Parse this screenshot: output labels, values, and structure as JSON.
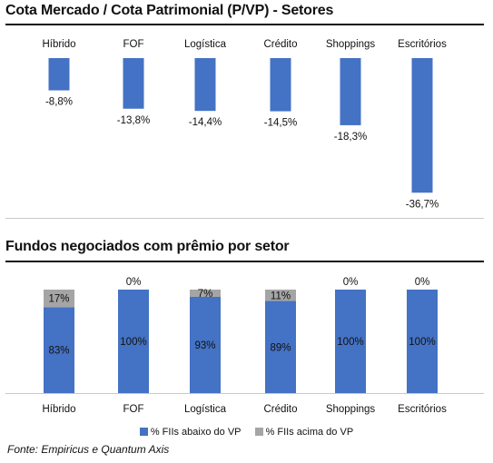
{
  "chart_data": [
    {
      "type": "bar",
      "title": "Cota Mercado / Cota Patrimonial (P/VP) - Setores",
      "categories": [
        "Híbrido",
        "FOF",
        "Logística",
        "Crédito",
        "Shoppings",
        "Escritórios"
      ],
      "values": [
        -8.8,
        -13.8,
        -14.4,
        -14.5,
        -18.3,
        -36.7
      ],
      "labels": [
        "-8,8%",
        "-13,8%",
        "-14,4%",
        "-14,5%",
        "-18,3%",
        "-36,7%"
      ],
      "unit": "%",
      "category_axis_position": "top",
      "color": "#4472C4"
    },
    {
      "type": "bar",
      "stacked": true,
      "title": "Fundos negociados com prêmio por setor",
      "categories": [
        "Híbrido",
        "FOF",
        "Logística",
        "Crédito",
        "Shoppings",
        "Escritórios"
      ],
      "series": [
        {
          "name": "% FIIs abaixo do VP",
          "values": [
            83,
            100,
            93,
            89,
            100,
            100
          ],
          "labels": [
            "83%",
            "100%",
            "93%",
            "89%",
            "100%",
            "100%"
          ],
          "color": "#4472C4"
        },
        {
          "name": "% FIIs acima do VP",
          "values": [
            17,
            0,
            7,
            11,
            0,
            0
          ],
          "labels": [
            "17%",
            "0%",
            "7%",
            "11%",
            "0%",
            "0%"
          ],
          "color": "#A5A5A5"
        }
      ],
      "ylim": [
        0,
        100
      ],
      "legend": "bottom"
    }
  ],
  "source": "Fonte: Empiricus e Quantum Axis"
}
